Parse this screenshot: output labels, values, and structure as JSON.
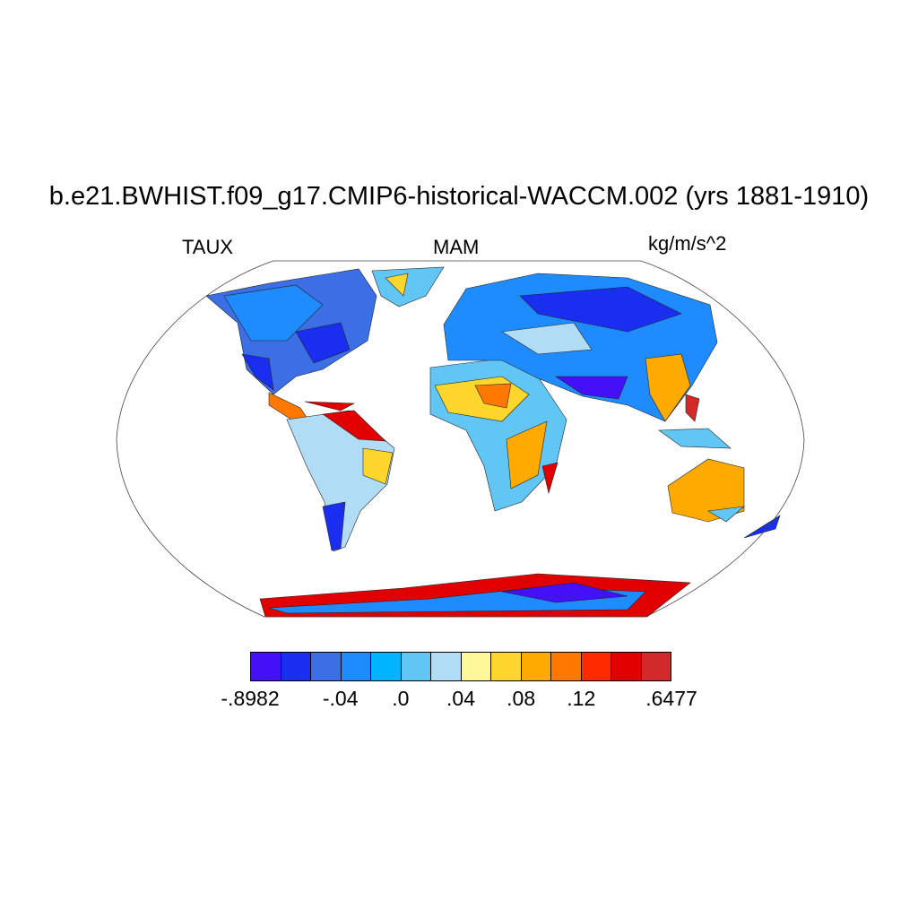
{
  "title": "b.e21.BWHIST.f09_g17.CMIP6-historical-WACCM.002 (yrs 1881-1910)",
  "left_string": "TAUX",
  "center_string": "MAM",
  "right_string": "kg/m/s^2",
  "colorbar": {
    "colors": [
      "#4410f5",
      "#1a2ef0",
      "#3c6ee6",
      "#1e8cff",
      "#00b4ff",
      "#62c6f5",
      "#b0dcf5",
      "#fff89a",
      "#ffd72c",
      "#ffaa00",
      "#ff7800",
      "#ff2a00",
      "#e10000",
      "#d22a2a"
    ],
    "labels": [
      "-.8982",
      "-.04",
      ".0",
      ".04",
      ".08",
      ".12",
      ".6477"
    ]
  }
}
